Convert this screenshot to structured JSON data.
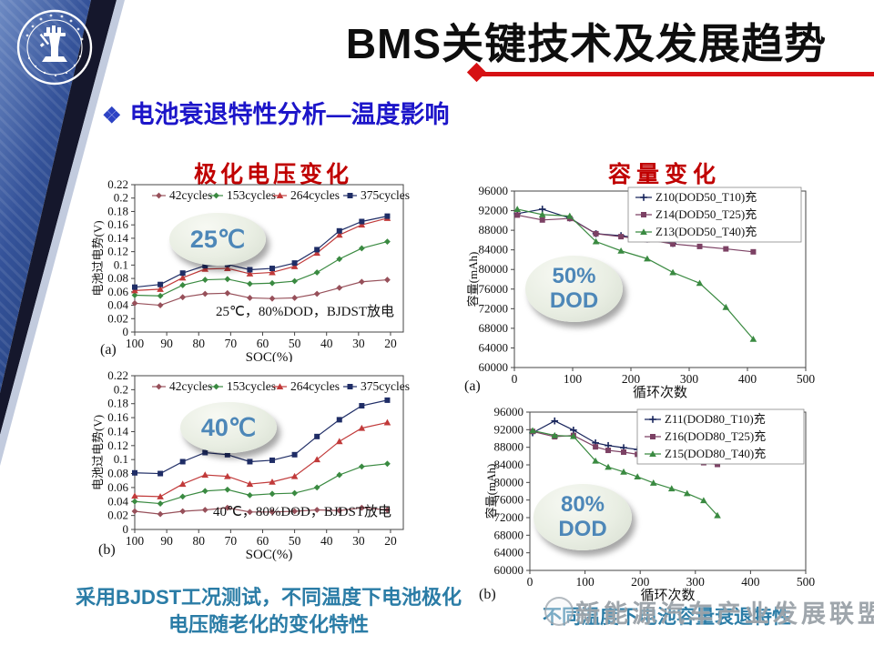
{
  "slide": {
    "header_title": "BMS关键技术及发展趋势",
    "section_bullet": "❖",
    "section_title": "电池衰退特性分析—温度影响",
    "caption_left_line1": "采用BJDST工况测试，不同温度下电池极化",
    "caption_left_line2": "电压随老化的变化特性",
    "caption_right": "不同温度下电池容量衰退特性",
    "watermark_text": "新能源汽车产业发展联盟",
    "colors": {
      "accent_red": "#d61114",
      "heading_blue": "#1c15c9",
      "chart_title_red": "#c00000",
      "caption_teal": "#2a7ca6",
      "badge_text_blue": "#4d87b8"
    },
    "icons": {
      "bullet": "four-diamond-bullet-icon",
      "logo": "university-seal-logo"
    }
  },
  "chart_data": [
    {
      "id": "polar25",
      "type": "line",
      "title": "极化电压变化",
      "panel_label": "(a)",
      "badge_line1": "25℃",
      "note": "25℃，80%DOD，BJDST放电",
      "xlabel": "SOC(%)",
      "ylabel": "电池过电势(V)",
      "x_reverse": true,
      "xlim": [
        16,
        100
      ],
      "ylim": [
        0,
        0.22
      ],
      "xticks": [
        100,
        90,
        80,
        70,
        60,
        50,
        40,
        30,
        20
      ],
      "yticks": [
        0,
        0.02,
        0.04,
        0.06,
        0.08,
        0.1,
        0.12,
        0.14,
        0.16,
        0.18,
        0.2,
        0.22
      ],
      "legend_style": "row",
      "grid": false,
      "x": [
        100,
        92,
        85,
        78,
        71,
        64,
        57,
        50,
        43,
        36,
        29,
        21
      ],
      "series": [
        {
          "name": "42cycles",
          "color": "#97505a",
          "marker": "diamond",
          "y": [
            0.043,
            0.04,
            0.052,
            0.057,
            0.058,
            0.051,
            0.05,
            0.051,
            0.057,
            0.066,
            0.075,
            0.078
          ]
        },
        {
          "name": "153cycles",
          "color": "#3a8a41",
          "marker": "diamond",
          "y": [
            0.055,
            0.054,
            0.07,
            0.078,
            0.079,
            0.072,
            0.073,
            0.076,
            0.089,
            0.109,
            0.125,
            0.135
          ]
        },
        {
          "name": "264cycles",
          "color": "#c13a3a",
          "marker": "triangle",
          "y": [
            0.062,
            0.064,
            0.081,
            0.094,
            0.095,
            0.087,
            0.089,
            0.098,
            0.118,
            0.145,
            0.16,
            0.17
          ]
        },
        {
          "name": "375cycles",
          "color": "#1f2d66",
          "marker": "square",
          "y": [
            0.067,
            0.071,
            0.088,
            0.099,
            0.101,
            0.093,
            0.095,
            0.103,
            0.123,
            0.151,
            0.165,
            0.173
          ]
        }
      ]
    },
    {
      "id": "polar40",
      "type": "line",
      "title": "极化电压变化",
      "panel_label": "(b)",
      "badge_line1": "40℃",
      "note": "40℃，80%DOD，BJDST放电",
      "xlabel": "SOC(%)",
      "ylabel": "电池过电势(V)",
      "x_reverse": true,
      "xlim": [
        16,
        100
      ],
      "ylim": [
        0,
        0.22
      ],
      "xticks": [
        100,
        90,
        80,
        70,
        60,
        50,
        40,
        30,
        20
      ],
      "yticks": [
        0,
        0.02,
        0.04,
        0.06,
        0.08,
        0.1,
        0.12,
        0.14,
        0.16,
        0.18,
        0.2,
        0.22
      ],
      "legend_style": "row",
      "grid": false,
      "x": [
        100,
        92,
        85,
        78,
        71,
        64,
        57,
        50,
        43,
        36,
        29,
        21
      ],
      "series": [
        {
          "name": "42cycles",
          "color": "#97505a",
          "marker": "diamond",
          "y": [
            0.026,
            0.022,
            0.026,
            0.028,
            0.031,
            0.025,
            0.025,
            0.026,
            0.028,
            0.027,
            0.031,
            0.028
          ]
        },
        {
          "name": "153cycles",
          "color": "#3a8a41",
          "marker": "diamond",
          "y": [
            0.04,
            0.037,
            0.047,
            0.055,
            0.057,
            0.049,
            0.051,
            0.052,
            0.06,
            0.078,
            0.09,
            0.094
          ]
        },
        {
          "name": "264cycles",
          "color": "#c13a3a",
          "marker": "triangle",
          "y": [
            0.048,
            0.047,
            0.065,
            0.078,
            0.076,
            0.065,
            0.068,
            0.076,
            0.1,
            0.126,
            0.145,
            0.153
          ]
        },
        {
          "name": "375cycles",
          "color": "#1f2d66",
          "marker": "square",
          "y": [
            0.081,
            0.08,
            0.097,
            0.11,
            0.107,
            0.097,
            0.099,
            0.107,
            0.133,
            0.157,
            0.177,
            0.185
          ]
        }
      ]
    },
    {
      "id": "cap50",
      "type": "line",
      "title": "容量变化",
      "panel_label": "(a)",
      "badge_line1": "50%",
      "badge_line2": "DOD",
      "xlabel": "循环次数",
      "ylabel": "容量(mAh)",
      "x_reverse": false,
      "xlim": [
        0,
        500
      ],
      "ylim": [
        60000,
        96000
      ],
      "xticks": [
        0,
        100,
        200,
        300,
        400,
        500
      ],
      "yticks": [
        60000,
        64000,
        68000,
        72000,
        76000,
        80000,
        84000,
        88000,
        92000,
        96000
      ],
      "legend_style": "box",
      "grid": false,
      "series": [
        {
          "name": "Z10(DOD50_T10)充",
          "color": "#18255c",
          "marker": "plus",
          "x": [
            5,
            48,
            95,
            140,
            183,
            228,
            272
          ],
          "y": [
            91400,
            92300,
            90500,
            87300,
            86900,
            86200,
            85300
          ]
        },
        {
          "name": "Z14(DOD50_T25)充",
          "color": "#7c4164",
          "marker": "square",
          "x": [
            5,
            48,
            95,
            140,
            183,
            228,
            272,
            318,
            363,
            410
          ],
          "y": [
            91100,
            90100,
            90400,
            87300,
            86700,
            86100,
            85200,
            84700,
            84200,
            83600
          ]
        },
        {
          "name": "Z13(DOD50_T40)充",
          "color": "#3a8a41",
          "marker": "triangle",
          "x": [
            5,
            48,
            95,
            140,
            183,
            228,
            272,
            318,
            363,
            410
          ],
          "y": [
            92300,
            91200,
            90900,
            85700,
            83800,
            82200,
            79400,
            77200,
            72300,
            65800
          ]
        }
      ]
    },
    {
      "id": "cap80",
      "type": "line",
      "title": "容量变化",
      "panel_label": "(b)",
      "badge_line1": "80%",
      "badge_line2": "DOD",
      "xlabel": "循环次数",
      "ylabel": "容量(mAh)",
      "x_reverse": false,
      "xlim": [
        0,
        500
      ],
      "ylim": [
        60000,
        96000
      ],
      "xticks": [
        0,
        100,
        200,
        300,
        400,
        500
      ],
      "yticks": [
        60000,
        64000,
        68000,
        72000,
        76000,
        80000,
        84000,
        88000,
        92000,
        96000
      ],
      "legend_style": "box",
      "grid": false,
      "series": [
        {
          "name": "Z11(DOD80_T10)充",
          "color": "#18255c",
          "marker": "plus",
          "x": [
            5,
            45,
            79,
            119,
            142,
            170,
            195,
            224,
            257,
            285,
            315,
            340
          ],
          "y": [
            91300,
            94000,
            91900,
            89000,
            88400,
            87900,
            87500,
            87100,
            86700,
            86300,
            85800,
            85400
          ]
        },
        {
          "name": "Z16(DOD80_T25)充",
          "color": "#7c4164",
          "marker": "square",
          "x": [
            5,
            45,
            79,
            119,
            142,
            170,
            195,
            224,
            257,
            285,
            315,
            340
          ],
          "y": [
            91600,
            90400,
            90700,
            88100,
            87300,
            86900,
            86400,
            85900,
            85400,
            85000,
            84500,
            84100
          ]
        },
        {
          "name": "Z15(DOD80_T40)充",
          "color": "#3a8a41",
          "marker": "triangle",
          "x": [
            5,
            45,
            79,
            119,
            142,
            170,
            195,
            224,
            257,
            285,
            315,
            340
          ],
          "y": [
            91800,
            90700,
            90500,
            84900,
            83500,
            82400,
            81300,
            79900,
            78600,
            77500,
            75900,
            72500
          ]
        }
      ]
    }
  ]
}
